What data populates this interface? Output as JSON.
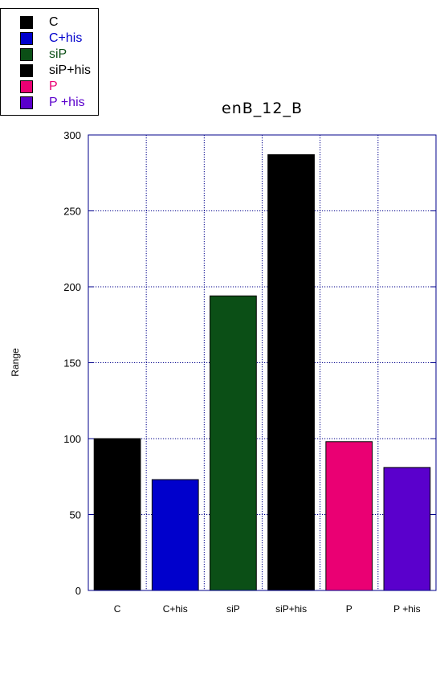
{
  "chart_data": {
    "type": "bar",
    "title": "enB_12_B",
    "xlabel": "",
    "ylabel": "Range",
    "ylim": [
      0,
      300
    ],
    "yticks": [
      0,
      50,
      100,
      150,
      200,
      250,
      300
    ],
    "grid": true,
    "legend_position": "top-left",
    "categories": [
      "C",
      "C+his",
      "siP",
      "siP+his",
      "P",
      "P +his"
    ],
    "values": [
      100,
      73,
      194,
      287,
      98,
      81
    ],
    "colors": [
      "#000000",
      "#0000cc",
      "#0b4f16",
      "#000000",
      "#ea0073",
      "#5a00cc"
    ],
    "legend": [
      {
        "label": "C",
        "color": "#000000",
        "text_color": "#000000"
      },
      {
        "label": "C+his",
        "color": "#0000cc",
        "text_color": "#0000cc"
      },
      {
        "label": "siP",
        "color": "#0b4f16",
        "text_color": "#0b4f16"
      },
      {
        "label": "siP+his",
        "color": "#000000",
        "text_color": "#000000"
      },
      {
        "label": "P",
        "color": "#ea0073",
        "text_color": "#ea0073"
      },
      {
        "label": "P +his",
        "color": "#5a00cc",
        "text_color": "#5a00cc"
      }
    ],
    "axis_color": "#00008b",
    "grid_color": "#00008b"
  }
}
